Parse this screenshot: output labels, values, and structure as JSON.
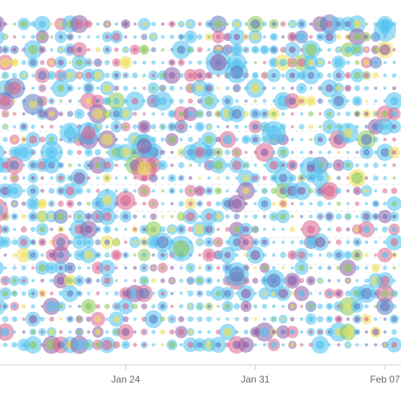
{
  "chart_data": {
    "type": "scatter",
    "title": "",
    "xlabel": "",
    "ylabel": "",
    "x_ticks": [
      "Jan 24",
      "Jan 31",
      "Feb 07"
    ],
    "x_tick_dates": [
      "2015-01-24",
      "2015-01-31",
      "2015-02-07"
    ],
    "x_range": [
      "2015-01-17",
      "2015-02-07"
    ],
    "y_range": [
      0,
      1
    ],
    "grid": {
      "y": true,
      "x": false
    },
    "legend": "none",
    "palette": {
      "blue": "#4fc1ef",
      "pink": "#d9668f",
      "yellow": "#ecdf55",
      "purple": "#8b5ca5",
      "green": "#8bc85a",
      "navy": "#5b7cc0"
    },
    "colors": [
      "blue",
      "pink",
      "yellow",
      "purple",
      "green",
      "navy"
    ],
    "dates": [
      "2015-01-17",
      "2015-01-18",
      "2015-01-19",
      "2015-01-20",
      "2015-01-21",
      "2015-01-22",
      "2015-01-23",
      "2015-01-24",
      "2015-01-25",
      "2015-01-26",
      "2015-01-27",
      "2015-01-28",
      "2015-01-29",
      "2015-01-30",
      "2015-01-31",
      "2015-02-01",
      "2015-02-02",
      "2015-02-03",
      "2015-02-04",
      "2015-02-05",
      "2015-02-06",
      "2015-02-07"
    ],
    "rows": [
      0.02,
      0.09,
      0.16,
      0.23,
      0.3,
      0.38,
      0.45,
      0.52,
      0.59,
      0.66,
      0.73,
      0.8,
      0.87,
      0.94,
      0.98
    ],
    "big_points": [
      {
        "date": "2015-01-20",
        "y": 0.6,
        "size": 14,
        "color": "blue"
      },
      {
        "date": "2015-01-21",
        "y": 0.66,
        "size": 13,
        "color": "blue"
      },
      {
        "date": "2015-01-19",
        "y": 0.75,
        "size": 13,
        "color": "navy"
      },
      {
        "date": "2015-01-18",
        "y": 0.8,
        "size": 13,
        "color": "navy"
      },
      {
        "date": "2015-01-22",
        "y": 0.66,
        "size": 14,
        "color": "blue"
      },
      {
        "date": "2015-01-23",
        "y": 0.45,
        "size": 14,
        "color": "blue"
      },
      {
        "date": "2015-01-24",
        "y": 0.45,
        "size": 12,
        "color": "pink"
      },
      {
        "date": "2015-01-25",
        "y": 0.55,
        "size": 16,
        "color": "pink"
      },
      {
        "date": "2015-01-25",
        "y": 0.62,
        "size": 15,
        "color": "blue"
      },
      {
        "date": "2015-01-28",
        "y": 0.6,
        "size": 14,
        "color": "blue"
      },
      {
        "date": "2015-01-29",
        "y": 0.88,
        "size": 16,
        "color": "blue"
      },
      {
        "date": "2015-01-30",
        "y": 0.22,
        "size": 15,
        "color": "blue"
      },
      {
        "date": "2015-02-01",
        "y": 0.66,
        "size": 15,
        "color": "blue"
      },
      {
        "date": "2015-02-03",
        "y": 0.55,
        "size": 14,
        "color": "blue"
      },
      {
        "date": "2015-02-05",
        "y": 0.66,
        "size": 13,
        "color": "blue"
      },
      {
        "date": "2015-01-17",
        "y": 0.42,
        "size": 15,
        "color": "pink"
      },
      {
        "date": "2015-01-27",
        "y": 0.3,
        "size": 16,
        "color": "blue"
      },
      {
        "date": "2015-01-30",
        "y": 0.85,
        "size": 14,
        "color": "blue"
      },
      {
        "date": "2015-02-07",
        "y": 0.98,
        "size": 14,
        "color": "blue"
      },
      {
        "date": "2015-02-01",
        "y": 0.2,
        "size": 14,
        "color": "blue"
      }
    ]
  }
}
